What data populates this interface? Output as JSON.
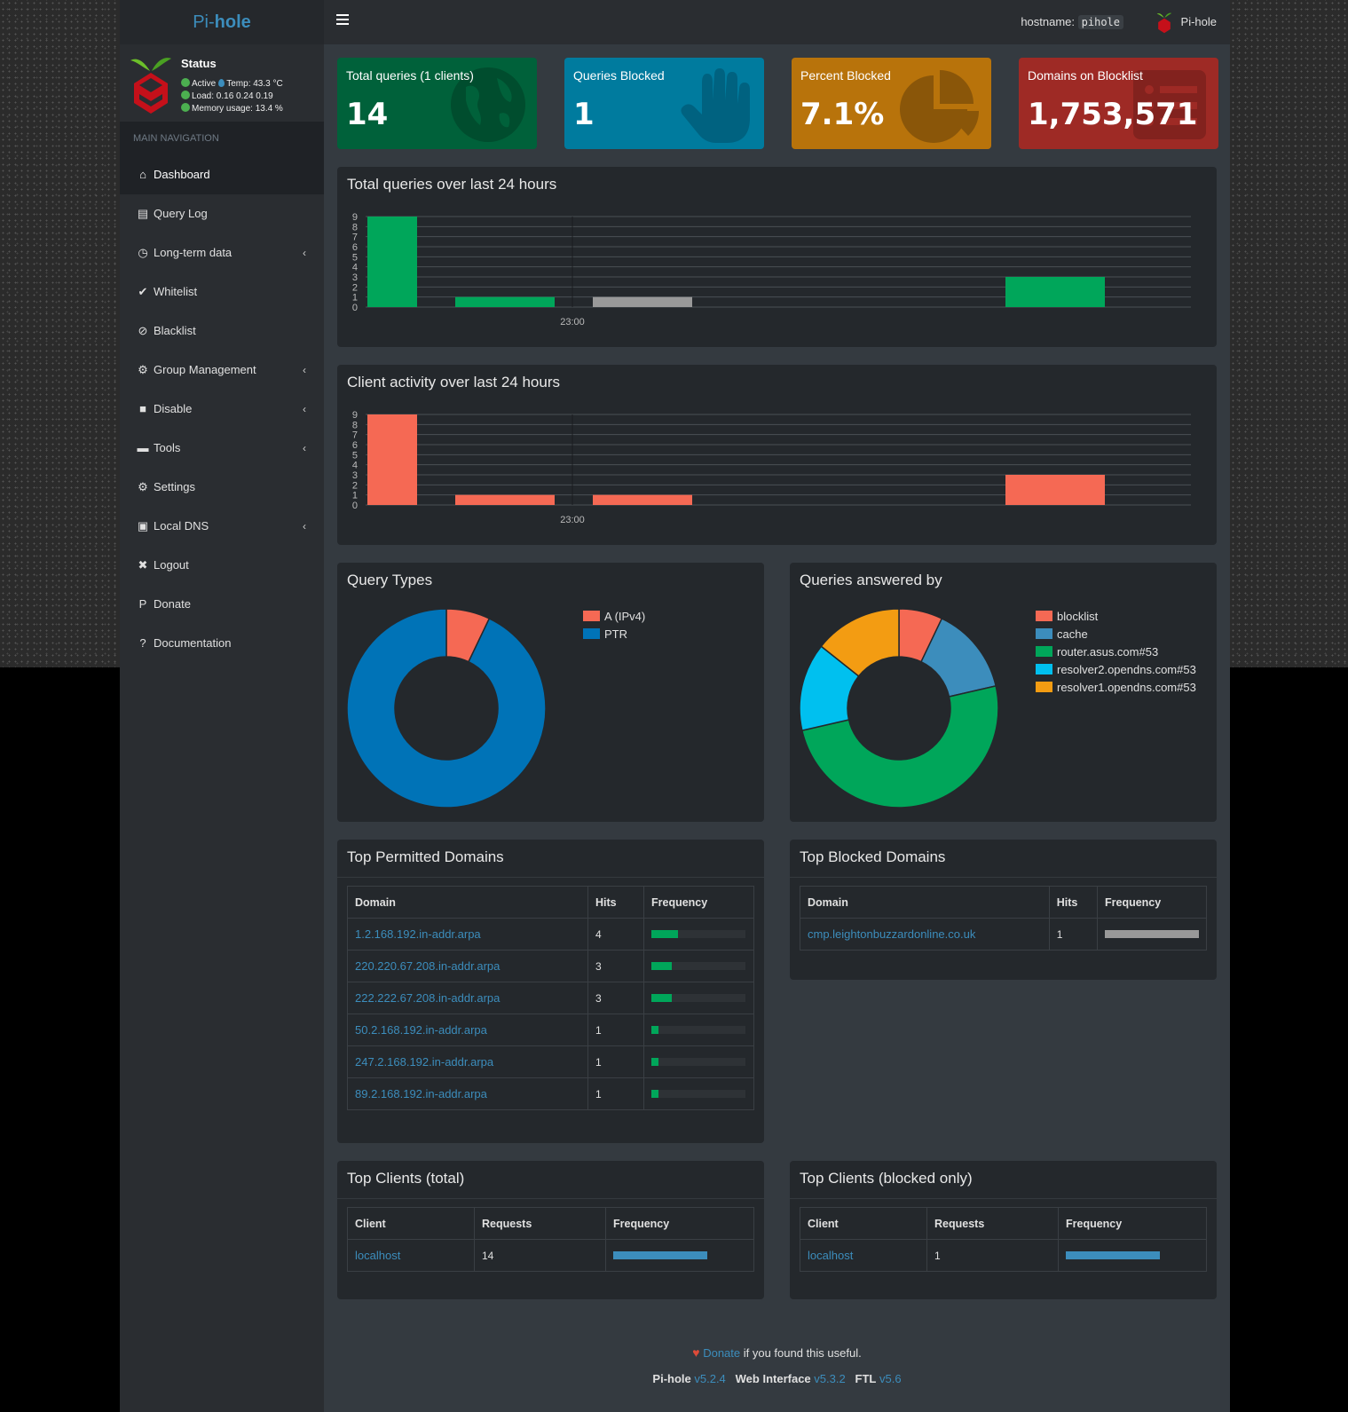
{
  "brand": {
    "prefix": "Pi-",
    "suffix": "hole"
  },
  "status": {
    "title": "Status",
    "active": "Active",
    "temp": "Temp: 43.3 °C",
    "load": "Load:  0.16  0.24  0.19",
    "memory": "Memory usage:  13.4 %"
  },
  "nav_header": "MAIN NAVIGATION",
  "nav": [
    {
      "label": "Dashboard",
      "icon": "home-icon",
      "glyph": "⌂"
    },
    {
      "label": "Query Log",
      "icon": "file-icon",
      "glyph": "▤"
    },
    {
      "label": "Long-term data",
      "icon": "clock-icon",
      "glyph": "◷"
    },
    {
      "label": "Whitelist",
      "icon": "check-circle-icon",
      "glyph": "✔"
    },
    {
      "label": "Blacklist",
      "icon": "ban-icon",
      "glyph": "⊘"
    },
    {
      "label": "Group Management",
      "icon": "users-cog-icon",
      "glyph": "⚙"
    },
    {
      "label": "Disable",
      "icon": "stop-icon",
      "glyph": "■"
    },
    {
      "label": "Tools",
      "icon": "folder-icon",
      "glyph": "▬"
    },
    {
      "label": "Settings",
      "icon": "cogs-icon",
      "glyph": "⚙"
    },
    {
      "label": "Local DNS",
      "icon": "address-book-icon",
      "glyph": "▣"
    },
    {
      "label": "Logout",
      "icon": "user-times-icon",
      "glyph": "✖"
    },
    {
      "label": "Donate",
      "icon": "paypal-icon",
      "glyph": "P"
    },
    {
      "label": "Documentation",
      "icon": "question-circle-icon",
      "glyph": "?"
    }
  ],
  "topbar": {
    "hostname_label": "hostname:",
    "hostname": "pihole",
    "user": "Pi-hole"
  },
  "summary": [
    {
      "label": "Total queries (1 clients)",
      "value": "14",
      "color": "#00613a",
      "icon": "globe-icon"
    },
    {
      "label": "Queries Blocked",
      "value": "1",
      "color": "#007b9e",
      "icon": "hand-icon"
    },
    {
      "label": "Percent Blocked",
      "value": "7.1%",
      "color": "#b8730b",
      "icon": "pie-chart-icon"
    },
    {
      "label": "Domains on Blocklist",
      "value": "1,753,571",
      "color": "#9e2a25",
      "icon": "list-icon"
    }
  ],
  "queries_box": {
    "title": "Total queries over last 24 hours"
  },
  "clients_box": {
    "title": "Client activity over last 24 hours"
  },
  "query_types_box": {
    "title": "Query Types"
  },
  "answered_box": {
    "title": "Queries answered by"
  },
  "chart_data": [
    {
      "type": "bar",
      "title": "Total queries over last 24 hours",
      "ylim": [
        0,
        9
      ],
      "yticks": [
        0,
        1,
        2,
        3,
        4,
        5,
        6,
        7,
        8,
        9
      ],
      "xtick": "23:00",
      "grid": true,
      "bars": [
        {
          "slot": 0,
          "value": 9,
          "color": "#00a65a"
        },
        {
          "slot": 1,
          "value": 1,
          "color": "#00a65a"
        },
        {
          "slot": 2,
          "value": 1,
          "color": "#999999"
        },
        {
          "slot": 5,
          "value": 3,
          "color": "#00a65a"
        }
      ]
    },
    {
      "type": "bar",
      "title": "Client activity over last 24 hours",
      "ylim": [
        0,
        9
      ],
      "yticks": [
        0,
        1,
        2,
        3,
        4,
        5,
        6,
        7,
        8,
        9
      ],
      "xtick": "23:00",
      "grid": true,
      "bars": [
        {
          "slot": 0,
          "value": 9,
          "color": "#f56954"
        },
        {
          "slot": 1,
          "value": 1,
          "color": "#f56954"
        },
        {
          "slot": 2,
          "value": 1,
          "color": "#f56954"
        },
        {
          "slot": 5,
          "value": 3,
          "color": "#f56954"
        }
      ]
    },
    {
      "type": "pie",
      "title": "Query Types",
      "legend": "right",
      "slices": [
        {
          "name": "A (IPv4)",
          "value": 7.1,
          "color": "#f56954"
        },
        {
          "name": "PTR",
          "value": 92.9,
          "color": "#0073b7"
        }
      ]
    },
    {
      "type": "pie",
      "title": "Queries answered by",
      "legend": "right",
      "slices": [
        {
          "name": "blocklist",
          "value": 7.1,
          "color": "#f56954"
        },
        {
          "name": "cache",
          "value": 14.3,
          "color": "#3c8dbc"
        },
        {
          "name": "router.asus.com#53",
          "value": 50.0,
          "color": "#00a65a"
        },
        {
          "name": "resolver2.opendns.com#53",
          "value": 14.3,
          "color": "#00c0ef"
        },
        {
          "name": "resolver1.opendns.com#53",
          "value": 14.3,
          "color": "#f39c12"
        }
      ]
    }
  ],
  "permitted": {
    "title": "Top Permitted Domains",
    "headers": [
      "Domain",
      "Hits",
      "Frequency"
    ],
    "rows": [
      {
        "domain": "1.2.168.192.in-addr.arpa",
        "hits": "4",
        "freq": 0.286
      },
      {
        "domain": "220.220.67.208.in-addr.arpa",
        "hits": "3",
        "freq": 0.214
      },
      {
        "domain": "222.222.67.208.in-addr.arpa",
        "hits": "3",
        "freq": 0.214
      },
      {
        "domain": "50.2.168.192.in-addr.arpa",
        "hits": "1",
        "freq": 0.071
      },
      {
        "domain": "247.2.168.192.in-addr.arpa",
        "hits": "1",
        "freq": 0.071
      },
      {
        "domain": "89.2.168.192.in-addr.arpa",
        "hits": "1",
        "freq": 0.071
      }
    ]
  },
  "blocked": {
    "title": "Top Blocked Domains",
    "headers": [
      "Domain",
      "Hits",
      "Frequency"
    ],
    "rows": [
      {
        "domain": "cmp.leightonbuzzardonline.co.uk",
        "hits": "1",
        "freq": 1.0
      }
    ]
  },
  "clients_total": {
    "title": "Top Clients (total)",
    "headers": [
      "Client",
      "Requests",
      "Frequency"
    ],
    "rows": [
      {
        "client": "localhost",
        "requests": "14",
        "freq": 1.0
      }
    ]
  },
  "clients_blocked": {
    "title": "Top Clients (blocked only)",
    "headers": [
      "Client",
      "Requests",
      "Frequency"
    ],
    "rows": [
      {
        "client": "localhost",
        "requests": "1",
        "freq": 1.0
      }
    ]
  },
  "footer": {
    "donate": "Donate",
    "donate_suffix": " if you found this useful.",
    "pihole_label": "Pi-hole",
    "pihole_ver": "v5.2.4",
    "web_label": "Web Interface",
    "web_ver": "v5.3.2",
    "ftl_label": "FTL",
    "ftl_ver": "v5.6"
  }
}
